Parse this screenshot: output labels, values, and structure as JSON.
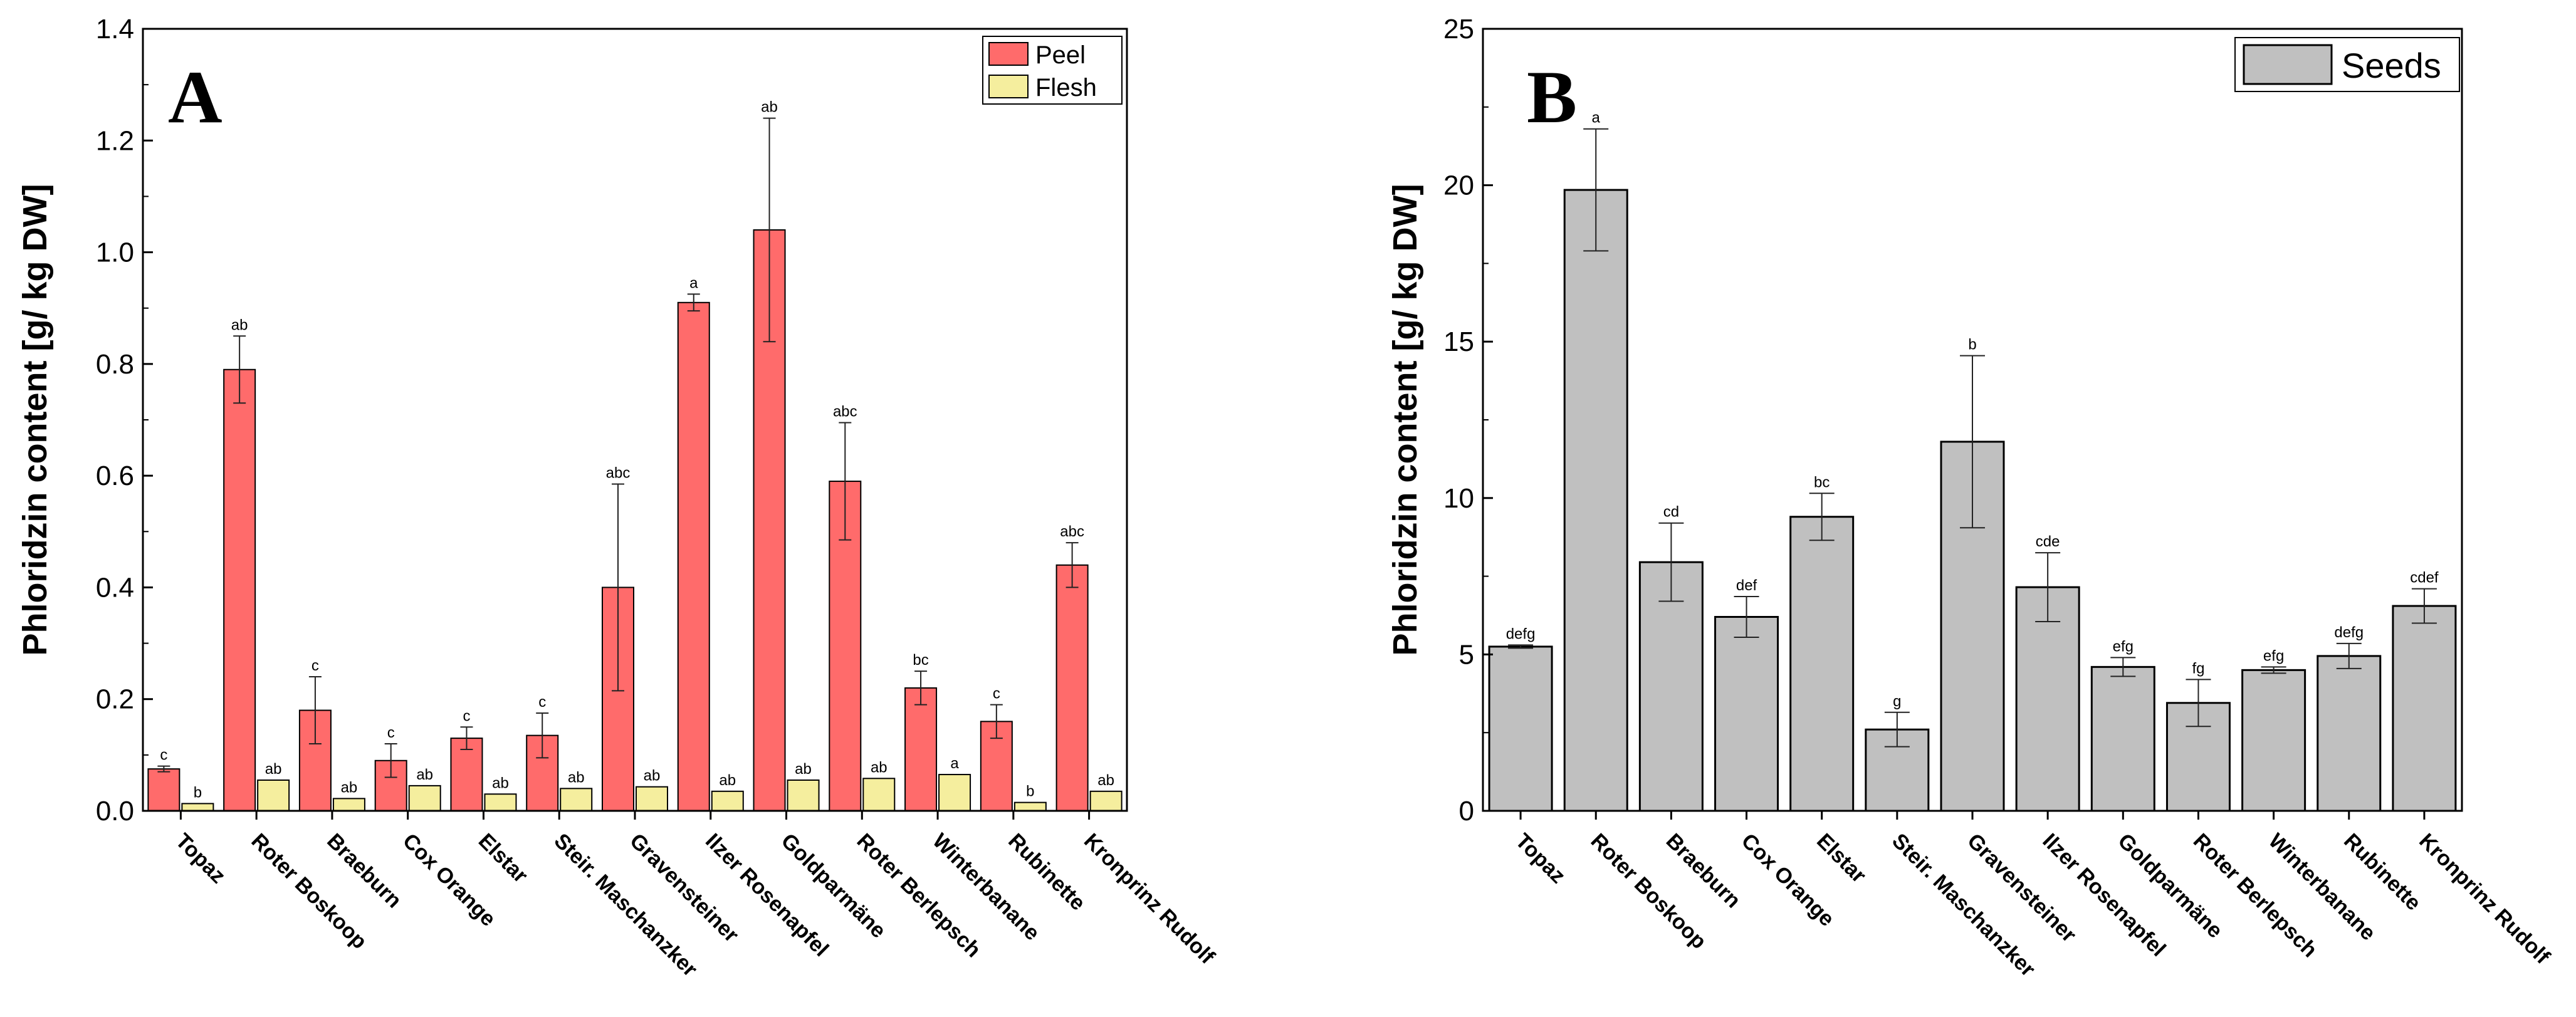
{
  "colors": {
    "peel": "#ff6b6b",
    "flesh": "#f5ee9e",
    "seeds": "#c0c0c0",
    "bar_stroke": "#000000",
    "background": "#ffffff"
  },
  "chart_data": [
    {
      "type": "bar",
      "panel_label": "A",
      "ylabel": "Phloridzin content [g/ kg DW]",
      "xlabel": "",
      "ylim": [
        0,
        1.4
      ],
      "yticks": [
        "0.0",
        "0.2",
        "0.4",
        "0.6",
        "0.8",
        "1.0",
        "1.2",
        "1.4"
      ],
      "grid": false,
      "legend_position": "top-right",
      "categories": [
        "Topaz",
        "Roter Boskoop",
        "Braeburn",
        "Cox Orange",
        "Elstar",
        "Steir. Maschanzker",
        "Gravensteiner",
        "Ilzer Rosenapfel",
        "Goldparmäne",
        "Roter Berlepsch",
        "Winterbanane",
        "Rubinette",
        "Kronprinz Rudolf"
      ],
      "series": [
        {
          "name": "Peel",
          "color_key": "peel",
          "values": [
            0.075,
            0.79,
            0.18,
            0.09,
            0.13,
            0.135,
            0.4,
            0.91,
            1.04,
            0.59,
            0.22,
            0.16,
            0.44
          ],
          "errors": [
            0.005,
            0.06,
            0.06,
            0.03,
            0.02,
            0.04,
            0.185,
            0.015,
            0.2,
            0.105,
            0.03,
            0.03,
            0.04
          ],
          "sig_labels": [
            "c",
            "ab",
            "c",
            "c",
            "c",
            "c",
            "abc",
            "a",
            "ab",
            "abc",
            "bc",
            "c",
            "abc"
          ]
        },
        {
          "name": "Flesh",
          "color_key": "flesh",
          "values": [
            0.013,
            0.055,
            0.022,
            0.045,
            0.03,
            0.04,
            0.043,
            0.035,
            0.055,
            0.058,
            0.065,
            0.015,
            0.035
          ],
          "errors": [
            0,
            0,
            0,
            0,
            0,
            0,
            0,
            0,
            0,
            0,
            0,
            0,
            0
          ],
          "sig_labels": [
            "b",
            "ab",
            "ab",
            "ab",
            "ab",
            "ab",
            "ab",
            "ab",
            "ab",
            "ab",
            "a",
            "b",
            "ab"
          ]
        }
      ]
    },
    {
      "type": "bar",
      "panel_label": "B",
      "ylabel": "Phloridzin content [g/ kg DW]",
      "xlabel": "",
      "ylim": [
        0,
        25
      ],
      "yticks": [
        "0",
        "5",
        "10",
        "15",
        "20",
        "25"
      ],
      "grid": false,
      "legend_position": "top-right",
      "categories": [
        "Topaz",
        "Roter Boskoop",
        "Braeburn",
        "Cox Orange",
        "Elstar",
        "Steir. Maschanzker",
        "Gravensteiner",
        "Ilzer Rosenapfel",
        "Goldparmäne",
        "Roter Berlepsch",
        "Winterbanane",
        "Rubinette",
        "Kronprinz Rudolf"
      ],
      "series": [
        {
          "name": "Seeds",
          "color_key": "seeds",
          "values": [
            5.25,
            19.85,
            7.95,
            6.2,
            9.4,
            2.6,
            11.8,
            7.15,
            4.6,
            3.45,
            4.5,
            4.95,
            6.55
          ],
          "errors": [
            0.05,
            1.95,
            1.25,
            0.65,
            0.75,
            0.55,
            2.75,
            1.1,
            0.3,
            0.75,
            0.1,
            0.4,
            0.55
          ],
          "sig_labels": [
            "defg",
            "a",
            "cd",
            "def",
            "bc",
            "g",
            "b",
            "cde",
            "efg",
            "fg",
            "efg",
            "defg",
            "cdef"
          ]
        }
      ]
    }
  ]
}
